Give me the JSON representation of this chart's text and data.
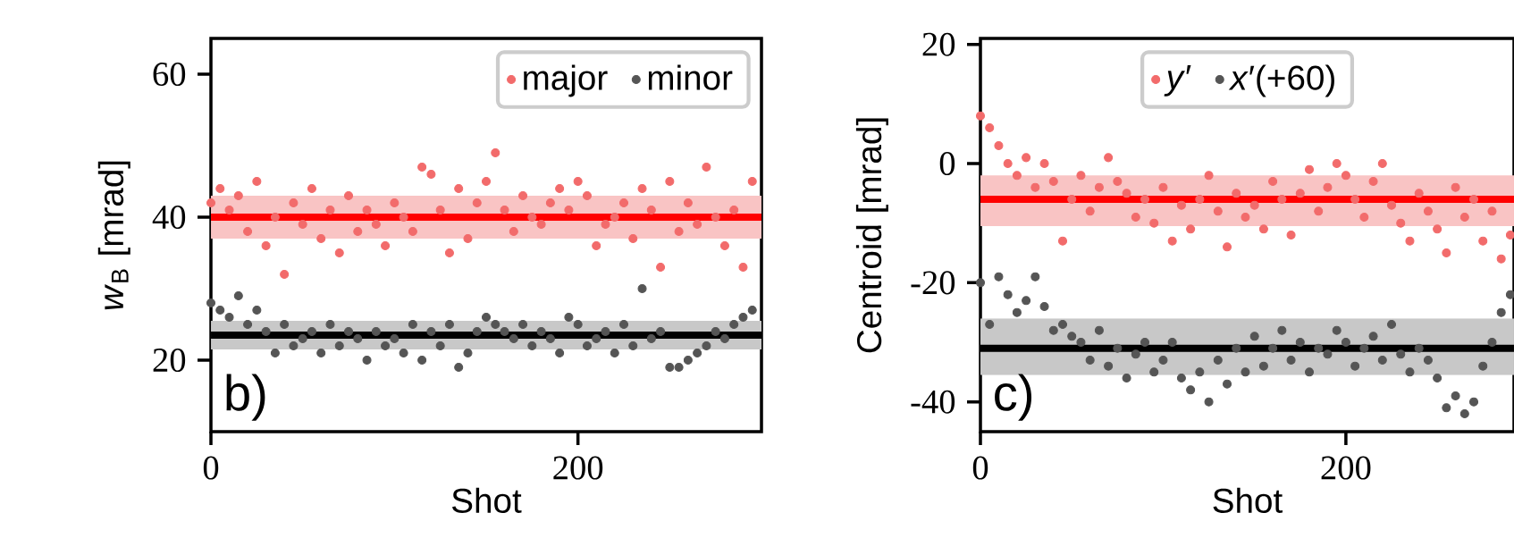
{
  "chart_data": [
    {
      "type": "scatter",
      "xlabel": "Shot",
      "ylabel": "*w*$_{B}$ [mrad]",
      "annotations": [
        "b)"
      ],
      "x": [
        0,
        5,
        10,
        15,
        20,
        25,
        30,
        35,
        40,
        45,
        50,
        55,
        60,
        65,
        70,
        75,
        80,
        85,
        90,
        95,
        100,
        105,
        110,
        115,
        120,
        125,
        130,
        135,
        140,
        145,
        150,
        155,
        160,
        165,
        170,
        175,
        180,
        185,
        190,
        195,
        200,
        205,
        210,
        215,
        220,
        225,
        230,
        235,
        240,
        245,
        250,
        255,
        260,
        265,
        270,
        275,
        280,
        285,
        290,
        295
      ],
      "series": [
        {
          "name": "major",
          "color": "#f26b6b",
          "values": [
            42,
            44,
            41,
            43,
            38,
            45,
            36,
            40,
            32,
            42,
            39,
            44,
            37,
            41,
            35,
            43,
            38,
            41,
            39,
            36,
            42,
            40,
            38,
            47,
            46,
            41,
            35,
            44,
            37,
            42,
            45,
            49,
            41,
            38,
            43,
            40,
            39,
            42,
            44,
            41,
            45,
            43,
            36,
            39,
            40,
            42,
            37,
            44,
            41,
            33,
            45,
            38,
            42,
            39,
            47,
            40,
            36,
            41,
            33,
            45
          ]
        },
        {
          "name": "minor",
          "color": "#555555",
          "values": [
            28,
            27,
            26,
            29,
            25,
            27,
            24,
            21,
            25,
            22,
            23,
            24,
            21,
            25,
            22,
            24,
            23,
            20,
            24,
            22,
            23,
            21,
            25,
            20,
            24,
            22,
            25,
            19,
            21,
            24,
            26,
            25,
            24,
            23,
            25,
            22,
            24,
            23,
            21,
            26,
            25,
            22,
            23,
            24,
            21,
            25,
            22,
            30,
            23,
            24,
            19,
            19,
            20,
            21,
            22,
            24,
            23,
            25,
            26,
            27
          ]
        }
      ],
      "bands": [
        {
          "axis": "y",
          "from": 37,
          "to": 43,
          "color": "#f9c4c4"
        },
        {
          "axis": "y",
          "from": 21.5,
          "to": 25.5,
          "color": "#c8c8c8"
        }
      ],
      "ref_lines": [
        {
          "axis": "y",
          "value": 40,
          "color": "#ff0000"
        },
        {
          "axis": "y",
          "value": 23.5,
          "color": "#000000"
        }
      ],
      "xlim": [
        0,
        300
      ],
      "ylim": [
        10,
        65
      ],
      "xticks": [
        0,
        200
      ],
      "yticks": [
        20,
        40,
        60
      ],
      "legend": "top right",
      "marker": "circle"
    },
    {
      "type": "scatter",
      "xlabel": "Shot",
      "ylabel": "Centroid [mrad]",
      "annotations": [
        "c)"
      ],
      "x": [
        0,
        5,
        10,
        15,
        20,
        25,
        30,
        35,
        40,
        45,
        50,
        55,
        60,
        65,
        70,
        75,
        80,
        85,
        90,
        95,
        100,
        105,
        110,
        115,
        120,
        125,
        130,
        135,
        140,
        145,
        150,
        155,
        160,
        165,
        170,
        175,
        180,
        185,
        190,
        195,
        200,
        205,
        210,
        215,
        220,
        225,
        230,
        235,
        240,
        245,
        250,
        255,
        260,
        265,
        270,
        275,
        280,
        285,
        290
      ],
      "series": [
        {
          "name": "*y*′",
          "color": "#f26b6b",
          "values": [
            8,
            6,
            3,
            0,
            -2,
            1,
            -4,
            0,
            -3,
            -13,
            -6,
            -2,
            -8,
            -4,
            1,
            -3,
            -5,
            -9,
            -6,
            -10,
            -4,
            -13,
            -7,
            -11,
            -6,
            -2,
            -8,
            -14,
            -5,
            -9,
            -7,
            -11,
            -3,
            -6,
            -12,
            -5,
            -1,
            -8,
            -4,
            0,
            -2,
            -6,
            -9,
            -3,
            0,
            -7,
            -10,
            -13,
            -5,
            -8,
            -11,
            -15,
            -4,
            -9,
            -6,
            -13,
            -8,
            -16,
            -12
          ]
        },
        {
          "name": "*x*′(+60)",
          "color": "#555555",
          "values": [
            -20,
            -27,
            -19,
            -22,
            -25,
            -23,
            -19,
            -24,
            -28,
            -27,
            -29,
            -30,
            -33,
            -28,
            -34,
            -31,
            -36,
            -32,
            -30,
            -35,
            -33,
            -30,
            -36,
            -38,
            -35,
            -40,
            -33,
            -37,
            -31,
            -35,
            -29,
            -34,
            -31,
            -28,
            -33,
            -30,
            -35,
            -31,
            -32,
            -28,
            -30,
            -34,
            -31,
            -29,
            -33,
            -27,
            -32,
            -35,
            -31,
            -33,
            -36,
            -41,
            -39,
            -42,
            -40,
            -34,
            -30,
            -25,
            -22
          ]
        }
      ],
      "bands": [
        {
          "axis": "y",
          "from": -10.5,
          "to": -2,
          "color": "#f9c4c4"
        },
        {
          "axis": "y",
          "from": -35.5,
          "to": -26,
          "color": "#c8c8c8"
        }
      ],
      "ref_lines": [
        {
          "axis": "y",
          "value": -6,
          "color": "#ff0000"
        },
        {
          "axis": "y",
          "value": -31,
          "color": "#000000"
        }
      ],
      "xlim": [
        0,
        292
      ],
      "ylim": [
        -45,
        21
      ],
      "xticks": [
        0,
        200
      ],
      "yticks": [
        -40,
        -20,
        0,
        20
      ],
      "legend": "top",
      "marker": "circle"
    }
  ]
}
